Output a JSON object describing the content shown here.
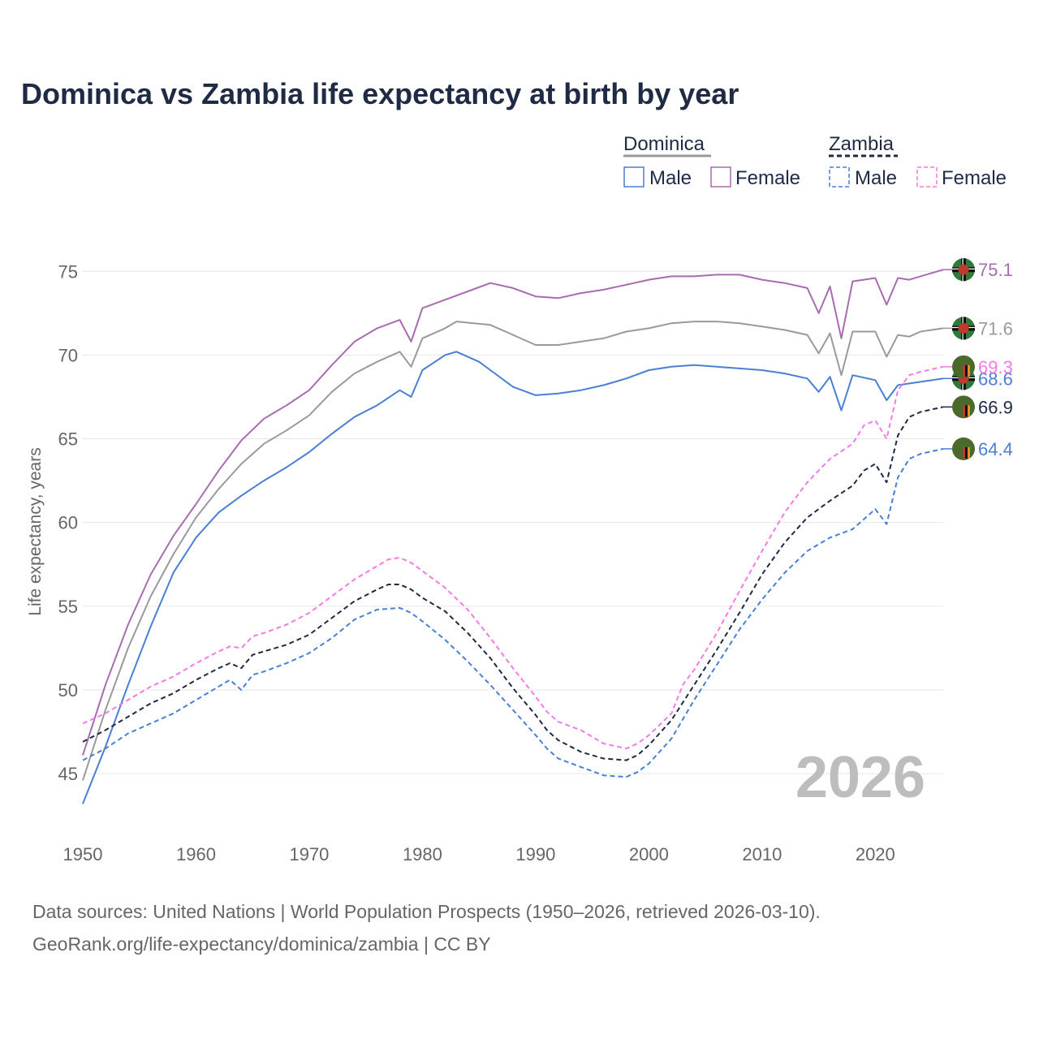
{
  "title": "Dominica vs Zambia life expectancy at birth by year",
  "legend": {
    "groups": [
      {
        "name": "Dominica",
        "items": [
          "Male",
          "Female"
        ]
      },
      {
        "name": "Zambia",
        "items": [
          "Male",
          "Female"
        ]
      }
    ]
  },
  "year_watermark": "2026",
  "source_line1": "Data sources: United Nations | World Population Prospects (1950–2026, retrieved 2026-03-10).",
  "source_line2": "GeoRank.org/life-expectancy/dominica/zambia | CC BY",
  "colors": {
    "male": "#4a7fd4",
    "female": "#a86cb0",
    "dominica_total": "#9a9a9a",
    "zambia_total": "#1f2a44",
    "zambia_female": "#f47ae6",
    "grid": "#e6e6e6",
    "flag_green": "#4a6a2c",
    "flag_red": "#c0392b"
  },
  "chart_data": {
    "type": "line",
    "xlabel": "",
    "ylabel": "Life expectancy, years",
    "xlim": [
      1950,
      2026
    ],
    "ylim": [
      42,
      77
    ],
    "xticks": [
      1950,
      1960,
      1970,
      1980,
      1990,
      2000,
      2010,
      2020
    ],
    "yticks": [
      45,
      50,
      55,
      60,
      65,
      70,
      75
    ],
    "series": [
      {
        "name": "Dominica Female",
        "country": "Dominica",
        "sex": "Female",
        "style": "solid",
        "color": "#a86cb0",
        "end_label": "75.1",
        "flag": "dominica",
        "points": [
          [
            1950,
            46.1
          ],
          [
            1952,
            50.3
          ],
          [
            1954,
            53.9
          ],
          [
            1956,
            56.9
          ],
          [
            1958,
            59.2
          ],
          [
            1960,
            61.1
          ],
          [
            1962,
            63.1
          ],
          [
            1964,
            64.9
          ],
          [
            1966,
            66.2
          ],
          [
            1968,
            67.0
          ],
          [
            1970,
            67.9
          ],
          [
            1972,
            69.4
          ],
          [
            1974,
            70.8
          ],
          [
            1976,
            71.6
          ],
          [
            1978,
            72.1
          ],
          [
            1979,
            70.8
          ],
          [
            1980,
            72.8
          ],
          [
            1982,
            73.3
          ],
          [
            1984,
            73.8
          ],
          [
            1986,
            74.3
          ],
          [
            1988,
            74.0
          ],
          [
            1990,
            73.5
          ],
          [
            1992,
            73.4
          ],
          [
            1994,
            73.7
          ],
          [
            1996,
            73.9
          ],
          [
            1998,
            74.2
          ],
          [
            2000,
            74.5
          ],
          [
            2002,
            74.7
          ],
          [
            2004,
            74.7
          ],
          [
            2006,
            74.8
          ],
          [
            2008,
            74.8
          ],
          [
            2010,
            74.5
          ],
          [
            2012,
            74.3
          ],
          [
            2014,
            74.0
          ],
          [
            2015,
            72.5
          ],
          [
            2016,
            74.1
          ],
          [
            2017,
            71.0
          ],
          [
            2018,
            74.4
          ],
          [
            2020,
            74.6
          ],
          [
            2021,
            73.0
          ],
          [
            2022,
            74.6
          ],
          [
            2023,
            74.5
          ],
          [
            2024,
            74.7
          ],
          [
            2026,
            75.1
          ]
        ]
      },
      {
        "name": "Dominica Total",
        "country": "Dominica",
        "sex": "Total",
        "style": "solid",
        "color": "#9a9a9a",
        "end_label": "71.6",
        "flag": "dominica",
        "points": [
          [
            1950,
            44.6
          ],
          [
            1952,
            48.8
          ],
          [
            1954,
            52.5
          ],
          [
            1956,
            55.6
          ],
          [
            1958,
            58.1
          ],
          [
            1960,
            60.3
          ],
          [
            1962,
            62.0
          ],
          [
            1964,
            63.5
          ],
          [
            1966,
            64.7
          ],
          [
            1968,
            65.5
          ],
          [
            1970,
            66.4
          ],
          [
            1972,
            67.8
          ],
          [
            1974,
            68.9
          ],
          [
            1976,
            69.6
          ],
          [
            1978,
            70.2
          ],
          [
            1979,
            69.3
          ],
          [
            1980,
            71.0
          ],
          [
            1982,
            71.6
          ],
          [
            1983,
            72.0
          ],
          [
            1986,
            71.8
          ],
          [
            1988,
            71.2
          ],
          [
            1990,
            70.6
          ],
          [
            1992,
            70.6
          ],
          [
            1994,
            70.8
          ],
          [
            1996,
            71.0
          ],
          [
            1998,
            71.4
          ],
          [
            2000,
            71.6
          ],
          [
            2002,
            71.9
          ],
          [
            2004,
            72.0
          ],
          [
            2006,
            72.0
          ],
          [
            2008,
            71.9
          ],
          [
            2010,
            71.7
          ],
          [
            2012,
            71.5
          ],
          [
            2014,
            71.2
          ],
          [
            2015,
            70.1
          ],
          [
            2016,
            71.3
          ],
          [
            2017,
            68.8
          ],
          [
            2018,
            71.4
          ],
          [
            2020,
            71.4
          ],
          [
            2021,
            69.9
          ],
          [
            2022,
            71.2
          ],
          [
            2023,
            71.1
          ],
          [
            2024,
            71.4
          ],
          [
            2026,
            71.6
          ]
        ]
      },
      {
        "name": "Dominica Male",
        "country": "Dominica",
        "sex": "Male",
        "style": "solid",
        "color": "#4a7fd4",
        "end_label": "68.6",
        "flag": "dominica",
        "points": [
          [
            1950,
            43.2
          ],
          [
            1952,
            46.6
          ],
          [
            1954,
            50.3
          ],
          [
            1956,
            53.8
          ],
          [
            1958,
            57.0
          ],
          [
            1960,
            59.1
          ],
          [
            1962,
            60.6
          ],
          [
            1964,
            61.6
          ],
          [
            1966,
            62.5
          ],
          [
            1968,
            63.3
          ],
          [
            1970,
            64.2
          ],
          [
            1972,
            65.3
          ],
          [
            1974,
            66.3
          ],
          [
            1976,
            67.0
          ],
          [
            1978,
            67.9
          ],
          [
            1979,
            67.5
          ],
          [
            1980,
            69.1
          ],
          [
            1982,
            70.0
          ],
          [
            1983,
            70.2
          ],
          [
            1985,
            69.6
          ],
          [
            1986,
            69.1
          ],
          [
            1988,
            68.1
          ],
          [
            1990,
            67.6
          ],
          [
            1992,
            67.7
          ],
          [
            1994,
            67.9
          ],
          [
            1996,
            68.2
          ],
          [
            1998,
            68.6
          ],
          [
            2000,
            69.1
          ],
          [
            2002,
            69.3
          ],
          [
            2004,
            69.4
          ],
          [
            2006,
            69.3
          ],
          [
            2008,
            69.2
          ],
          [
            2010,
            69.1
          ],
          [
            2012,
            68.9
          ],
          [
            2014,
            68.6
          ],
          [
            2015,
            67.8
          ],
          [
            2016,
            68.7
          ],
          [
            2017,
            66.7
          ],
          [
            2018,
            68.8
          ],
          [
            2020,
            68.5
          ],
          [
            2021,
            67.3
          ],
          [
            2022,
            68.2
          ],
          [
            2024,
            68.4
          ],
          [
            2026,
            68.6
          ]
        ]
      },
      {
        "name": "Zambia Female",
        "country": "Zambia",
        "sex": "Female",
        "style": "dashed",
        "color": "#f47ae6",
        "end_label": "69.3",
        "flag": "zambia",
        "points": [
          [
            1950,
            48.0
          ],
          [
            1952,
            48.6
          ],
          [
            1954,
            49.4
          ],
          [
            1956,
            50.2
          ],
          [
            1958,
            50.8
          ],
          [
            1960,
            51.6
          ],
          [
            1962,
            52.3
          ],
          [
            1963,
            52.6
          ],
          [
            1964,
            52.5
          ],
          [
            1965,
            53.2
          ],
          [
            1966,
            53.4
          ],
          [
            1968,
            53.9
          ],
          [
            1970,
            54.6
          ],
          [
            1972,
            55.6
          ],
          [
            1974,
            56.6
          ],
          [
            1976,
            57.4
          ],
          [
            1977,
            57.8
          ],
          [
            1978,
            57.9
          ],
          [
            1979,
            57.6
          ],
          [
            1980,
            57.1
          ],
          [
            1982,
            56.1
          ],
          [
            1984,
            54.8
          ],
          [
            1986,
            53.1
          ],
          [
            1988,
            51.3
          ],
          [
            1990,
            49.6
          ],
          [
            1991,
            48.7
          ],
          [
            1992,
            48.1
          ],
          [
            1994,
            47.6
          ],
          [
            1996,
            46.8
          ],
          [
            1998,
            46.5
          ],
          [
            1999,
            46.8
          ],
          [
            2000,
            47.3
          ],
          [
            2002,
            48.6
          ],
          [
            2003,
            50.3
          ],
          [
            2004,
            51.2
          ],
          [
            2006,
            53.4
          ],
          [
            2008,
            55.9
          ],
          [
            2010,
            58.3
          ],
          [
            2012,
            60.6
          ],
          [
            2014,
            62.4
          ],
          [
            2016,
            63.8
          ],
          [
            2018,
            64.7
          ],
          [
            2019,
            65.8
          ],
          [
            2020,
            66.1
          ],
          [
            2021,
            65.0
          ],
          [
            2022,
            67.9
          ],
          [
            2023,
            68.8
          ],
          [
            2024,
            69.0
          ],
          [
            2026,
            69.3
          ]
        ]
      },
      {
        "name": "Zambia Total",
        "country": "Zambia",
        "sex": "Total",
        "style": "dashed",
        "color": "#1f2a44",
        "end_label": "66.9",
        "flag": "zambia",
        "points": [
          [
            1950,
            46.9
          ],
          [
            1952,
            47.6
          ],
          [
            1954,
            48.4
          ],
          [
            1956,
            49.2
          ],
          [
            1958,
            49.8
          ],
          [
            1960,
            50.6
          ],
          [
            1962,
            51.3
          ],
          [
            1963,
            51.6
          ],
          [
            1964,
            51.3
          ],
          [
            1965,
            52.1
          ],
          [
            1966,
            52.3
          ],
          [
            1968,
            52.7
          ],
          [
            1970,
            53.3
          ],
          [
            1972,
            54.3
          ],
          [
            1974,
            55.3
          ],
          [
            1976,
            56.0
          ],
          [
            1977,
            56.3
          ],
          [
            1978,
            56.3
          ],
          [
            1979,
            56.0
          ],
          [
            1980,
            55.5
          ],
          [
            1982,
            54.7
          ],
          [
            1984,
            53.4
          ],
          [
            1986,
            51.9
          ],
          [
            1988,
            50.1
          ],
          [
            1990,
            48.5
          ],
          [
            1991,
            47.6
          ],
          [
            1992,
            47.0
          ],
          [
            1994,
            46.3
          ],
          [
            1996,
            45.9
          ],
          [
            1998,
            45.8
          ],
          [
            1999,
            46.1
          ],
          [
            2000,
            46.7
          ],
          [
            2002,
            48.2
          ],
          [
            2004,
            50.3
          ],
          [
            2006,
            52.4
          ],
          [
            2008,
            54.6
          ],
          [
            2010,
            56.9
          ],
          [
            2012,
            58.8
          ],
          [
            2014,
            60.3
          ],
          [
            2016,
            61.3
          ],
          [
            2018,
            62.2
          ],
          [
            2019,
            63.1
          ],
          [
            2020,
            63.5
          ],
          [
            2021,
            62.4
          ],
          [
            2022,
            65.2
          ],
          [
            2023,
            66.3
          ],
          [
            2024,
            66.6
          ],
          [
            2026,
            66.9
          ]
        ]
      },
      {
        "name": "Zambia Male",
        "country": "Zambia",
        "sex": "Male",
        "style": "dashed",
        "color": "#4a7fd4",
        "end_label": "64.4",
        "flag": "zambia",
        "points": [
          [
            1950,
            45.8
          ],
          [
            1952,
            46.5
          ],
          [
            1954,
            47.4
          ],
          [
            1956,
            48.0
          ],
          [
            1958,
            48.6
          ],
          [
            1960,
            49.4
          ],
          [
            1962,
            50.2
          ],
          [
            1963,
            50.6
          ],
          [
            1964,
            50.0
          ],
          [
            1965,
            50.9
          ],
          [
            1966,
            51.1
          ],
          [
            1968,
            51.6
          ],
          [
            1970,
            52.2
          ],
          [
            1972,
            53.1
          ],
          [
            1974,
            54.2
          ],
          [
            1976,
            54.8
          ],
          [
            1978,
            54.9
          ],
          [
            1979,
            54.6
          ],
          [
            1980,
            54.1
          ],
          [
            1982,
            53.0
          ],
          [
            1984,
            51.7
          ],
          [
            1986,
            50.3
          ],
          [
            1988,
            48.8
          ],
          [
            1990,
            47.3
          ],
          [
            1991,
            46.5
          ],
          [
            1992,
            45.9
          ],
          [
            1994,
            45.4
          ],
          [
            1996,
            44.9
          ],
          [
            1998,
            44.8
          ],
          [
            1999,
            45.1
          ],
          [
            2000,
            45.6
          ],
          [
            2002,
            47.1
          ],
          [
            2004,
            49.4
          ],
          [
            2006,
            51.5
          ],
          [
            2008,
            53.6
          ],
          [
            2010,
            55.4
          ],
          [
            2012,
            57.0
          ],
          [
            2014,
            58.3
          ],
          [
            2016,
            59.1
          ],
          [
            2018,
            59.6
          ],
          [
            2019,
            60.2
          ],
          [
            2020,
            60.8
          ],
          [
            2021,
            59.9
          ],
          [
            2022,
            62.7
          ],
          [
            2023,
            63.8
          ],
          [
            2024,
            64.1
          ],
          [
            2026,
            64.4
          ]
        ]
      }
    ]
  }
}
